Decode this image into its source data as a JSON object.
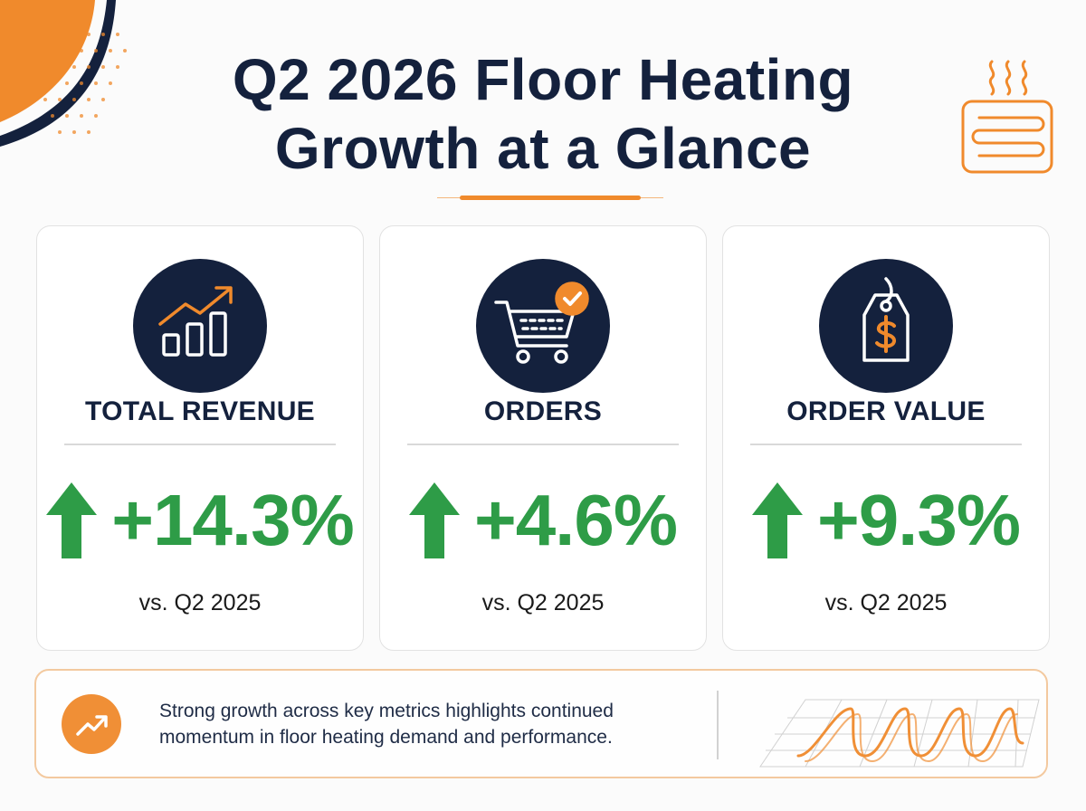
{
  "title": {
    "line1": "Q2 2026 Floor Heating",
    "line2": "Growth at a Glance"
  },
  "colors": {
    "navy": "#14213d",
    "accent_orange": "#f08a2c",
    "growth_green": "#2e9c47"
  },
  "metrics": [
    {
      "label": "TOTAL REVENUE",
      "change": "+14.3%",
      "change_value": 14.3,
      "comparison": "vs. Q2 2025",
      "icon": "rising-bar-chart-icon",
      "trend_icon": "up-arrow-icon"
    },
    {
      "label": "ORDERS",
      "change": "+4.6%",
      "change_value": 4.6,
      "comparison": "vs. Q2 2025",
      "icon": "shopping-cart-check-icon",
      "trend_icon": "up-arrow-icon"
    },
    {
      "label": "ORDER VALUE",
      "change": "+9.3%",
      "change_value": 9.3,
      "comparison": "vs. Q2 2025",
      "icon": "price-tag-dollar-icon",
      "trend_icon": "up-arrow-icon"
    }
  ],
  "footer": {
    "line1": "Strong growth across key metrics highlights continued",
    "line2": "momentum in floor heating demand and performance.",
    "icon": "trending-up-icon",
    "illustration": "floor-heating-coil-illustration"
  }
}
